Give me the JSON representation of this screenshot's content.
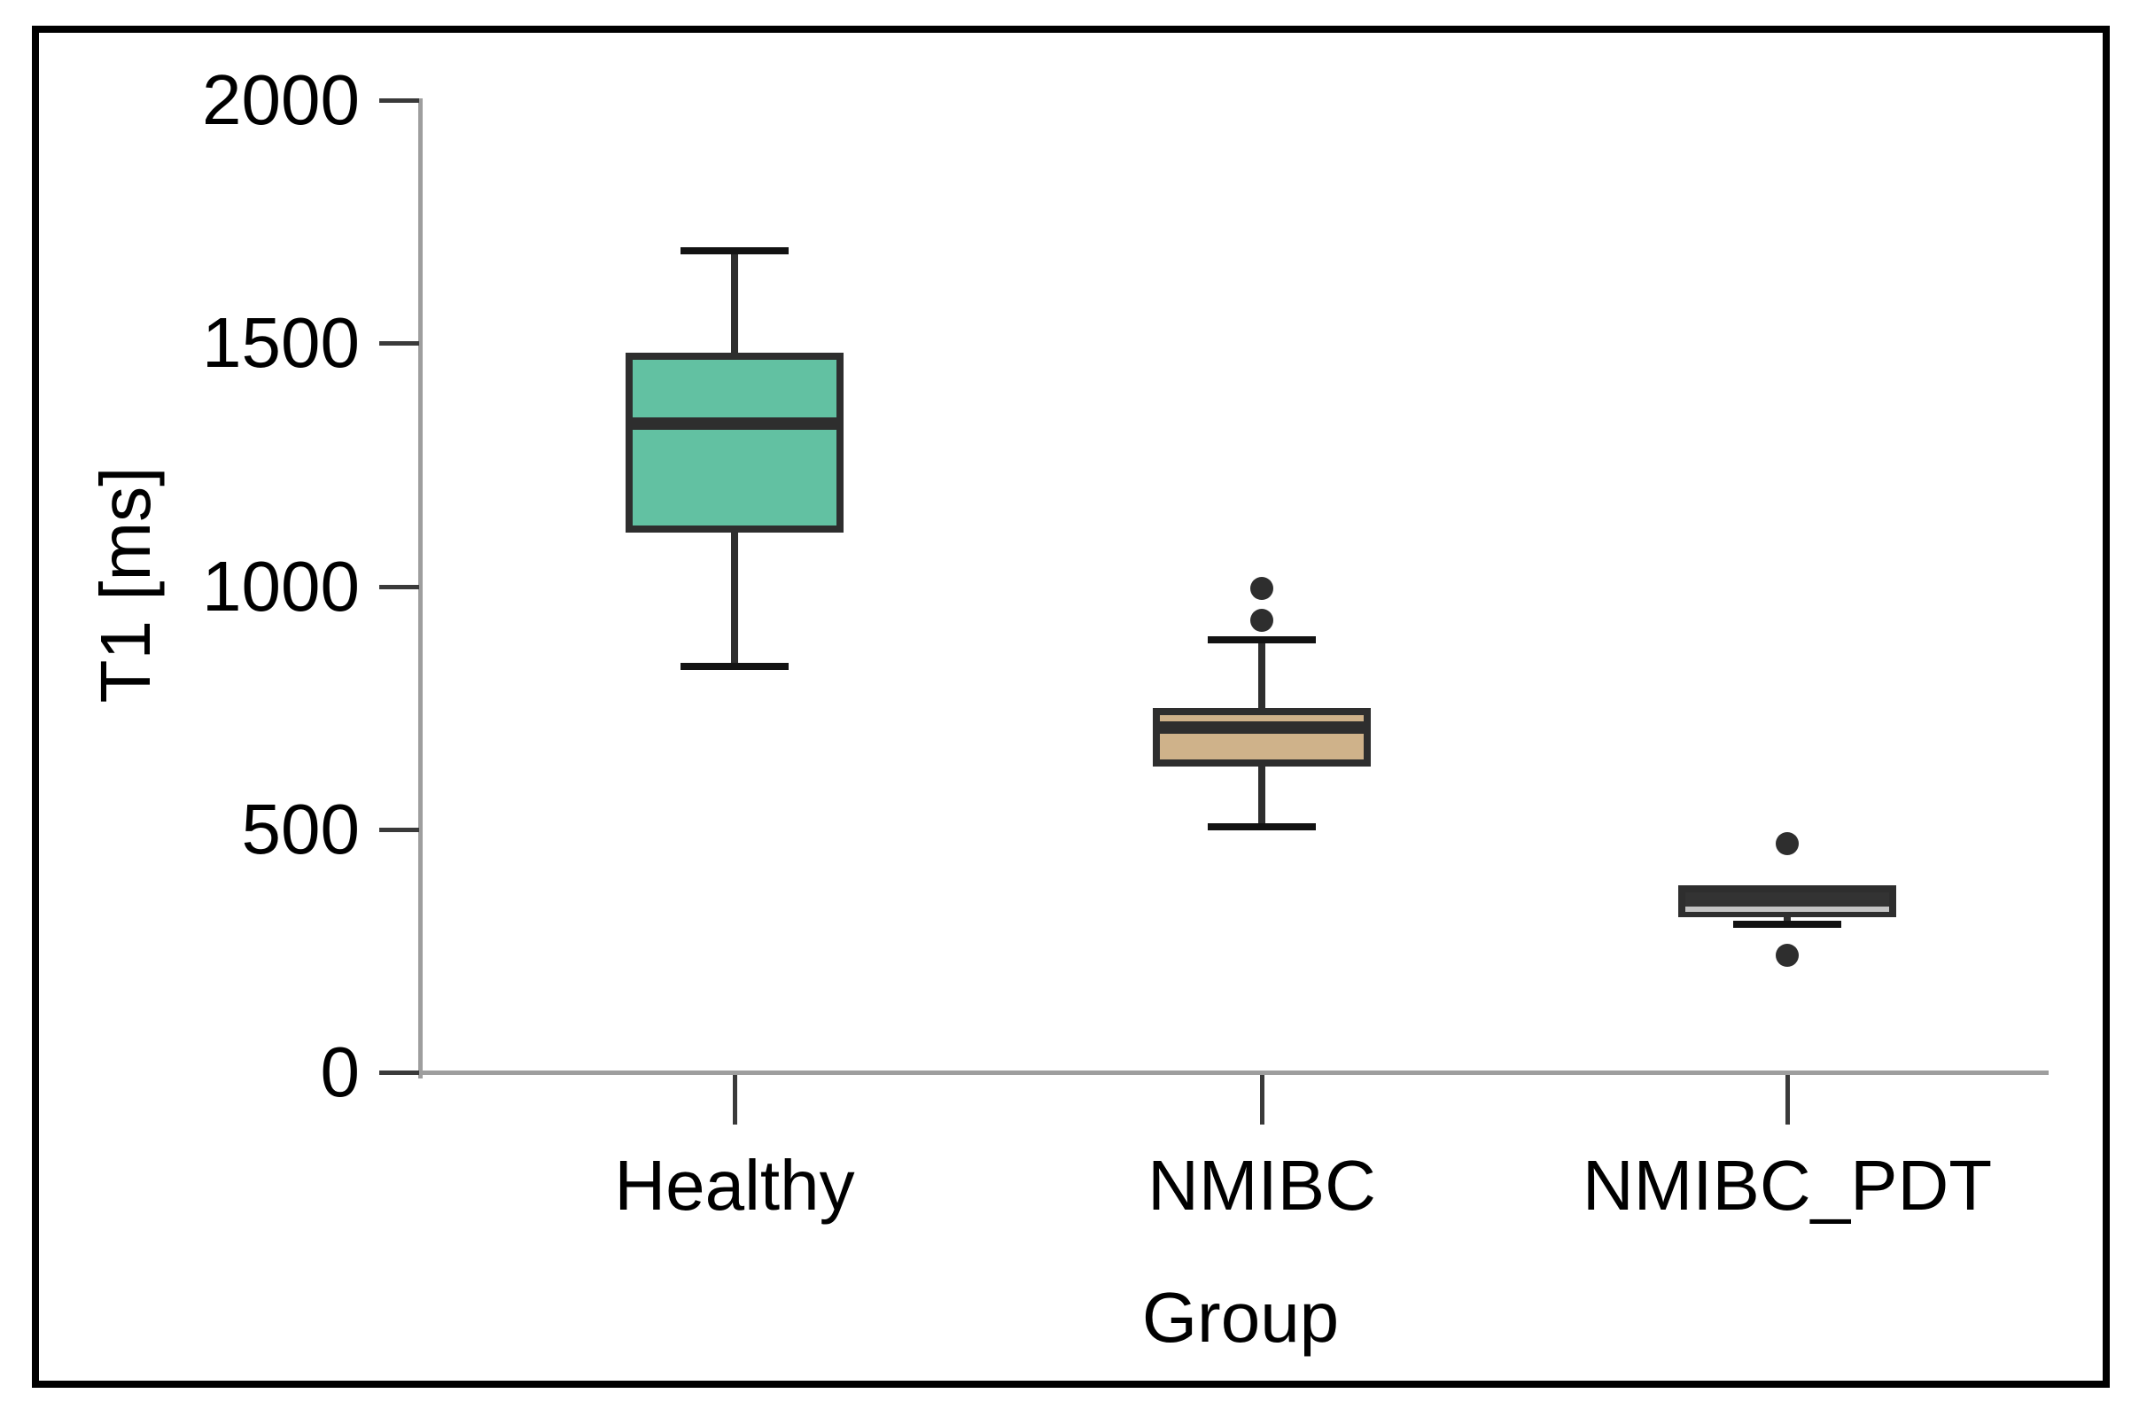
{
  "figure": {
    "background": "#FFFFFF",
    "frame_color": "#000000"
  },
  "chart_data": {
    "type": "boxplot",
    "title": "",
    "xlabel": "Group",
    "ylabel": "T1 [ms]",
    "ylim": [
      0,
      2000
    ],
    "yticks": [
      0,
      500,
      1000,
      1500,
      2000
    ],
    "grid": false,
    "legend": null,
    "categories": [
      "Healthy",
      "NMIBC",
      "NMIBC_PDT"
    ],
    "series": [
      {
        "group": "Healthy",
        "fill_color": "#62C1A2",
        "median_color": "#2E2E2E",
        "whisker_low": 835,
        "q1": 1110,
        "median": 1335,
        "q3": 1480,
        "whisker_high": 1690,
        "outliers": []
      },
      {
        "group": "NMIBC",
        "fill_color": "#CFB28A",
        "median_color": "#2E2E2E",
        "whisker_low": 505,
        "q1": 630,
        "median": 710,
        "q3": 750,
        "whisker_high": 890,
        "outliers": [
          930,
          995
        ]
      },
      {
        "group": "NMIBC_PDT",
        "fill_color": "#333333",
        "median_color": "#C4C4C4",
        "whisker_low": 305,
        "q1": 320,
        "median": 335,
        "q3": 385,
        "whisker_high": 385,
        "outliers": [
          240,
          470
        ]
      }
    ]
  },
  "colors": {
    "axis_line": "#9E9E9E",
    "tick_mark": "#3A3A3A",
    "box_border": "#2E2E2E",
    "whisker_cap": "#121212",
    "outlier": "#2E2E2E",
    "text": "#000000"
  }
}
